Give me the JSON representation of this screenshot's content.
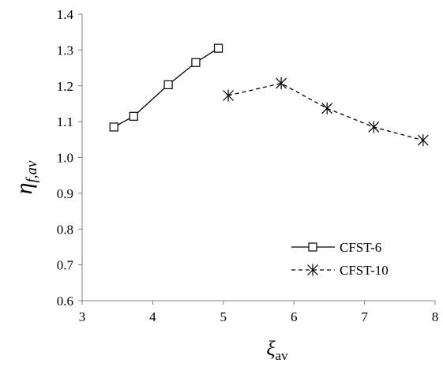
{
  "chart_data": {
    "type": "line",
    "xlabel": "ξ",
    "xlabel_sub": "av",
    "ylabel": "η",
    "ylabel_sub": "f,av",
    "xlim": [
      3,
      8
    ],
    "ylim": [
      0.6,
      1.4
    ],
    "x_ticks": [
      3,
      4,
      5,
      6,
      7,
      8
    ],
    "x_tick_labels": [
      "3",
      "4",
      "5",
      "6",
      "7",
      "8"
    ],
    "y_ticks": [
      0.6,
      0.7,
      0.8,
      0.9,
      1.0,
      1.1,
      1.2,
      1.3,
      1.4
    ],
    "y_tick_labels": [
      "0.6",
      "0.7",
      "0.8",
      "0.9",
      "1.0",
      "1.1",
      "1.2",
      "1.3",
      "1.4"
    ],
    "grid": false,
    "legend_position": "bottom-right",
    "series": [
      {
        "name": "CFST-6",
        "marker": "square",
        "line": "solid",
        "color": "#000000",
        "x": [
          3.45,
          3.73,
          4.22,
          4.61,
          4.93
        ],
        "y": [
          1.085,
          1.115,
          1.203,
          1.265,
          1.305
        ]
      },
      {
        "name": "CFST-10",
        "marker": "asterisk",
        "line": "dashed",
        "color": "#000000",
        "x": [
          5.07,
          5.82,
          6.47,
          7.13,
          7.83
        ],
        "y": [
          1.173,
          1.207,
          1.137,
          1.085,
          1.048
        ]
      }
    ]
  }
}
